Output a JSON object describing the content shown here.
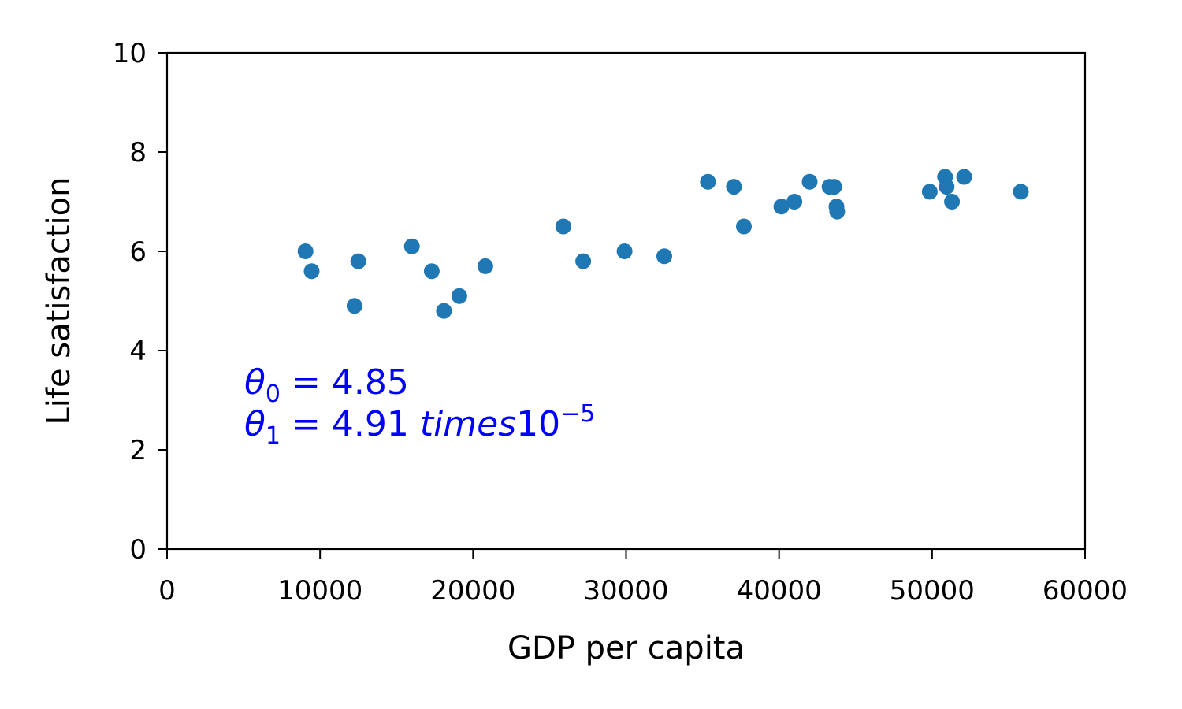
{
  "chart_data": {
    "type": "scatter",
    "xlabel": "GDP per capita",
    "ylabel": "Life satisfaction",
    "xlim": [
      0,
      60000
    ],
    "ylim": [
      0,
      10
    ],
    "xticks": [
      0,
      10000,
      20000,
      30000,
      40000,
      50000,
      60000
    ],
    "xtick_labels": [
      "0",
      "10000",
      "20000",
      "30000",
      "40000",
      "50000",
      "60000"
    ],
    "yticks": [
      0,
      2,
      4,
      6,
      8,
      10
    ],
    "ytick_labels": [
      "0",
      "2",
      "4",
      "6",
      "8",
      "10"
    ],
    "grid": false,
    "marker_color": "#1f77b4",
    "annotation_color": "#0000ff",
    "points": [
      {
        "x": 9050,
        "y": 6.0
      },
      {
        "x": 9450,
        "y": 5.6
      },
      {
        "x": 12250,
        "y": 4.9
      },
      {
        "x": 12500,
        "y": 5.8
      },
      {
        "x": 16000,
        "y": 6.1
      },
      {
        "x": 17300,
        "y": 5.6
      },
      {
        "x": 18100,
        "y": 4.8
      },
      {
        "x": 19100,
        "y": 5.1
      },
      {
        "x": 20800,
        "y": 5.7
      },
      {
        "x": 25900,
        "y": 6.5
      },
      {
        "x": 27200,
        "y": 5.8
      },
      {
        "x": 29900,
        "y": 6.0
      },
      {
        "x": 32500,
        "y": 5.9
      },
      {
        "x": 35350,
        "y": 7.4
      },
      {
        "x": 37050,
        "y": 7.3
      },
      {
        "x": 37700,
        "y": 6.5
      },
      {
        "x": 40150,
        "y": 6.9
      },
      {
        "x": 41000,
        "y": 7.0
      },
      {
        "x": 42000,
        "y": 7.4
      },
      {
        "x": 43300,
        "y": 7.3
      },
      {
        "x": 43600,
        "y": 7.3
      },
      {
        "x": 43750,
        "y": 6.9
      },
      {
        "x": 43800,
        "y": 6.8
      },
      {
        "x": 49850,
        "y": 7.2
      },
      {
        "x": 50850,
        "y": 7.5
      },
      {
        "x": 50950,
        "y": 7.3
      },
      {
        "x": 51300,
        "y": 7.0
      },
      {
        "x": 52100,
        "y": 7.5
      },
      {
        "x": 55800,
        "y": 7.2
      }
    ],
    "annotations": {
      "theta0": {
        "symbol": "θ",
        "subscript": "0",
        "equals": " = ",
        "value": "4.85"
      },
      "theta1": {
        "symbol": "θ",
        "subscript": "1",
        "equals": " = ",
        "value": "4.91 ",
        "word": "times",
        "base": "10",
        "exponent": "−5"
      }
    }
  }
}
